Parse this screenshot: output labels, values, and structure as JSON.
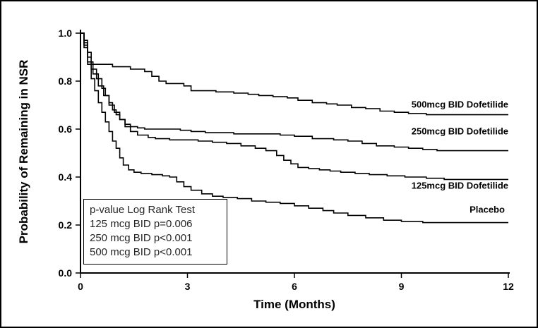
{
  "figure": {
    "background": "#ffffff",
    "frame_color": "#000000"
  },
  "chart_data": {
    "type": "line",
    "subtype": "kaplan-meier-step-function",
    "title": "",
    "xlabel": "Time (Months)",
    "ylabel": "Probability of Remaining in NSR",
    "xlim": [
      0,
      12
    ],
    "ylim": [
      0,
      1
    ],
    "xticks": [
      0,
      3,
      6,
      9,
      12
    ],
    "xticklabels": [
      "0",
      "3",
      "6",
      "9",
      "12"
    ],
    "yticks": [
      0,
      0.2,
      0.4,
      0.6,
      0.8,
      1.0
    ],
    "yticklabels": [
      "0.0",
      "0.2",
      "0.4",
      "0.6",
      "0.8",
      "1.0"
    ],
    "grid": false,
    "line_color": "#000000",
    "axis_color": "#000000",
    "legend_position": "inside-lower-left",
    "series": [
      {
        "id": "dofetilide-500",
        "name": "500mcg BID Dofetilide",
        "label_x": 12,
        "label_y": 0.69,
        "points": [
          [
            0,
            1.0
          ],
          [
            0.1,
            0.97
          ],
          [
            0.2,
            0.92
          ],
          [
            0.3,
            0.87
          ],
          [
            0.9,
            0.86
          ],
          [
            1.4,
            0.85
          ],
          [
            1.8,
            0.84
          ],
          [
            2.0,
            0.82
          ],
          [
            2.2,
            0.8
          ],
          [
            2.4,
            0.79
          ],
          [
            2.9,
            0.78
          ],
          [
            3.1,
            0.76
          ],
          [
            3.8,
            0.755
          ],
          [
            4.3,
            0.75
          ],
          [
            4.7,
            0.745
          ],
          [
            5.0,
            0.74
          ],
          [
            5.4,
            0.735
          ],
          [
            5.8,
            0.73
          ],
          [
            6.1,
            0.72
          ],
          [
            6.5,
            0.71
          ],
          [
            6.9,
            0.705
          ],
          [
            7.2,
            0.7
          ],
          [
            7.6,
            0.69
          ],
          [
            8.0,
            0.685
          ],
          [
            8.4,
            0.675
          ],
          [
            8.8,
            0.67
          ],
          [
            9.2,
            0.665
          ],
          [
            9.7,
            0.66
          ],
          [
            12,
            0.66
          ]
        ]
      },
      {
        "id": "dofetilide-250",
        "name": "250mcg BID Dofetilide",
        "label_x": 12,
        "label_y": 0.578,
        "points": [
          [
            0,
            1.0
          ],
          [
            0.1,
            0.96
          ],
          [
            0.2,
            0.9
          ],
          [
            0.3,
            0.85
          ],
          [
            0.45,
            0.81
          ],
          [
            0.6,
            0.77
          ],
          [
            0.7,
            0.74
          ],
          [
            0.8,
            0.71
          ],
          [
            0.9,
            0.68
          ],
          [
            1.0,
            0.66
          ],
          [
            1.1,
            0.64
          ],
          [
            1.25,
            0.62
          ],
          [
            1.4,
            0.61
          ],
          [
            1.6,
            0.605
          ],
          [
            1.8,
            0.6
          ],
          [
            2.8,
            0.595
          ],
          [
            3.1,
            0.59
          ],
          [
            3.5,
            0.585
          ],
          [
            4.3,
            0.58
          ],
          [
            5.6,
            0.575
          ],
          [
            6.0,
            0.57
          ],
          [
            6.5,
            0.56
          ],
          [
            7.1,
            0.555
          ],
          [
            7.5,
            0.55
          ],
          [
            7.9,
            0.54
          ],
          [
            8.3,
            0.53
          ],
          [
            8.8,
            0.525
          ],
          [
            9.2,
            0.52
          ],
          [
            9.6,
            0.515
          ],
          [
            10.0,
            0.51
          ],
          [
            12,
            0.51
          ]
        ]
      },
      {
        "id": "dofetilide-125",
        "name": "125mcg BID Dofetilide",
        "label_x": 12,
        "label_y": 0.352,
        "points": [
          [
            0,
            1.0
          ],
          [
            0.1,
            0.95
          ],
          [
            0.2,
            0.88
          ],
          [
            0.35,
            0.83
          ],
          [
            0.5,
            0.78
          ],
          [
            0.65,
            0.74
          ],
          [
            0.8,
            0.7
          ],
          [
            0.95,
            0.67
          ],
          [
            1.1,
            0.64
          ],
          [
            1.25,
            0.61
          ],
          [
            1.4,
            0.59
          ],
          [
            1.6,
            0.575
          ],
          [
            1.9,
            0.565
          ],
          [
            2.1,
            0.56
          ],
          [
            2.5,
            0.555
          ],
          [
            3.3,
            0.55
          ],
          [
            3.7,
            0.545
          ],
          [
            4.1,
            0.54
          ],
          [
            4.5,
            0.53
          ],
          [
            4.9,
            0.52
          ],
          [
            5.2,
            0.51
          ],
          [
            5.5,
            0.49
          ],
          [
            5.7,
            0.47
          ],
          [
            5.9,
            0.455
          ],
          [
            6.1,
            0.44
          ],
          [
            6.4,
            0.435
          ],
          [
            6.7,
            0.43
          ],
          [
            7.0,
            0.425
          ],
          [
            7.3,
            0.42
          ],
          [
            7.7,
            0.415
          ],
          [
            8.1,
            0.41
          ],
          [
            8.6,
            0.405
          ],
          [
            9.1,
            0.4
          ],
          [
            9.7,
            0.395
          ],
          [
            10.2,
            0.39
          ],
          [
            12,
            0.39
          ]
        ]
      },
      {
        "id": "placebo",
        "name": "Placebo",
        "label_x": 11.9,
        "label_y": 0.252,
        "points": [
          [
            0,
            1.0
          ],
          [
            0.1,
            0.94
          ],
          [
            0.2,
            0.87
          ],
          [
            0.3,
            0.81
          ],
          [
            0.4,
            0.76
          ],
          [
            0.5,
            0.71
          ],
          [
            0.6,
            0.67
          ],
          [
            0.7,
            0.63
          ],
          [
            0.8,
            0.59
          ],
          [
            0.9,
            0.55
          ],
          [
            1.0,
            0.52
          ],
          [
            1.1,
            0.48
          ],
          [
            1.2,
            0.45
          ],
          [
            1.35,
            0.43
          ],
          [
            1.5,
            0.42
          ],
          [
            1.7,
            0.415
          ],
          [
            2.0,
            0.41
          ],
          [
            2.3,
            0.405
          ],
          [
            2.5,
            0.4
          ],
          [
            2.7,
            0.38
          ],
          [
            2.9,
            0.36
          ],
          [
            3.1,
            0.345
          ],
          [
            3.4,
            0.33
          ],
          [
            3.7,
            0.32
          ],
          [
            4.0,
            0.315
          ],
          [
            4.4,
            0.31
          ],
          [
            4.8,
            0.3
          ],
          [
            5.2,
            0.295
          ],
          [
            5.6,
            0.29
          ],
          [
            6.0,
            0.28
          ],
          [
            6.4,
            0.27
          ],
          [
            6.8,
            0.26
          ],
          [
            7.1,
            0.25
          ],
          [
            7.5,
            0.24
          ],
          [
            8.0,
            0.23
          ],
          [
            8.5,
            0.22
          ],
          [
            9.0,
            0.215
          ],
          [
            9.6,
            0.21
          ],
          [
            12,
            0.21
          ]
        ]
      }
    ],
    "legend_box": {
      "title": "p-value Log Rank Test",
      "lines": [
        "125 mcg BID p=0.006",
        "250 mcg BID p<0.001",
        "500 mcg BID p<0.001"
      ],
      "text_color": "#262626"
    }
  }
}
